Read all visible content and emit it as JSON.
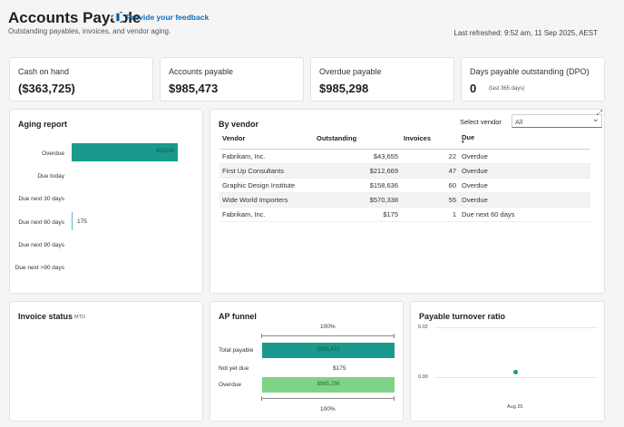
{
  "header": {
    "title": "Accounts Payable",
    "feedback_icon": "feedback-icon",
    "feedback_label": "Provide your feedback",
    "subtitle": "Outstanding payables, invoices, and vendor aging.",
    "last_refreshed": "Last refreshed: 9:52 am, 11 Sep 2025, AEST"
  },
  "kpis": [
    {
      "label": "Cash on hand",
      "value": "($363,725)"
    },
    {
      "label": "Accounts payable",
      "value": "$985,473"
    },
    {
      "label": "Overdue payable",
      "value": "$985,298"
    },
    {
      "label": "Days payable outstanding (DPO)",
      "value": "0",
      "note": "(last 365 days)"
    }
  ],
  "aging": {
    "title": "Aging report",
    "overdue_bar_fraction": 1.0,
    "due_next_60_fraction": 0.0002,
    "rows": [
      {
        "label": "Overdue",
        "value": "985298"
      },
      {
        "label": "Due today"
      },
      {
        "label": "Due next 30 days"
      },
      {
        "label": "Due next 60 days",
        "value": "175"
      },
      {
        "label": "Due next 90 days"
      },
      {
        "label": "Due next >90 days"
      }
    ]
  },
  "vendor": {
    "title": "By vendor",
    "select_label": "Select vendor",
    "select_value": "All",
    "columns": [
      "Vendor",
      "Outstanding",
      "Invoices",
      "Due"
    ],
    "rows": [
      {
        "vendor": "Fabrikam, Inc.",
        "outstanding": "$43,655",
        "invoices": "22",
        "due": "Overdue"
      },
      {
        "vendor": "First Up Consultants",
        "outstanding": "$212,669",
        "invoices": "47",
        "due": "Overdue"
      },
      {
        "vendor": "Graphic Design Institute",
        "outstanding": "$158,636",
        "invoices": "60",
        "due": "Overdue"
      },
      {
        "vendor": "Wide World Importers",
        "outstanding": "$570,338",
        "invoices": "55",
        "due": "Overdue"
      },
      {
        "vendor": "Fabrikam, Inc.",
        "outstanding": "$175",
        "invoices": "1",
        "due": "Due next 60 days"
      }
    ]
  },
  "invoice_status": {
    "title": "Invoice status",
    "period": "MTD"
  },
  "funnel": {
    "title": "AP funnel",
    "top_pct": "100%",
    "bottom_pct": "100%",
    "rows": [
      {
        "label": "Total payable",
        "value": "$985,473",
        "fraction": 1.0,
        "color": "#1a9a8c"
      },
      {
        "label": "Not yet due",
        "value": "$175",
        "fraction": 0.0
      },
      {
        "label": "Overdue",
        "value": "$985,298",
        "fraction": 1.0,
        "color": "#7ed387"
      }
    ]
  },
  "turnover": {
    "title": "Payable turnover ratio",
    "y_ticks": [
      "0.02",
      "0.00"
    ],
    "x_label": "Aug 25",
    "point": {
      "x": "Aug 25",
      "y": 0.002
    },
    "ylim": [
      0,
      0.02
    ]
  }
}
